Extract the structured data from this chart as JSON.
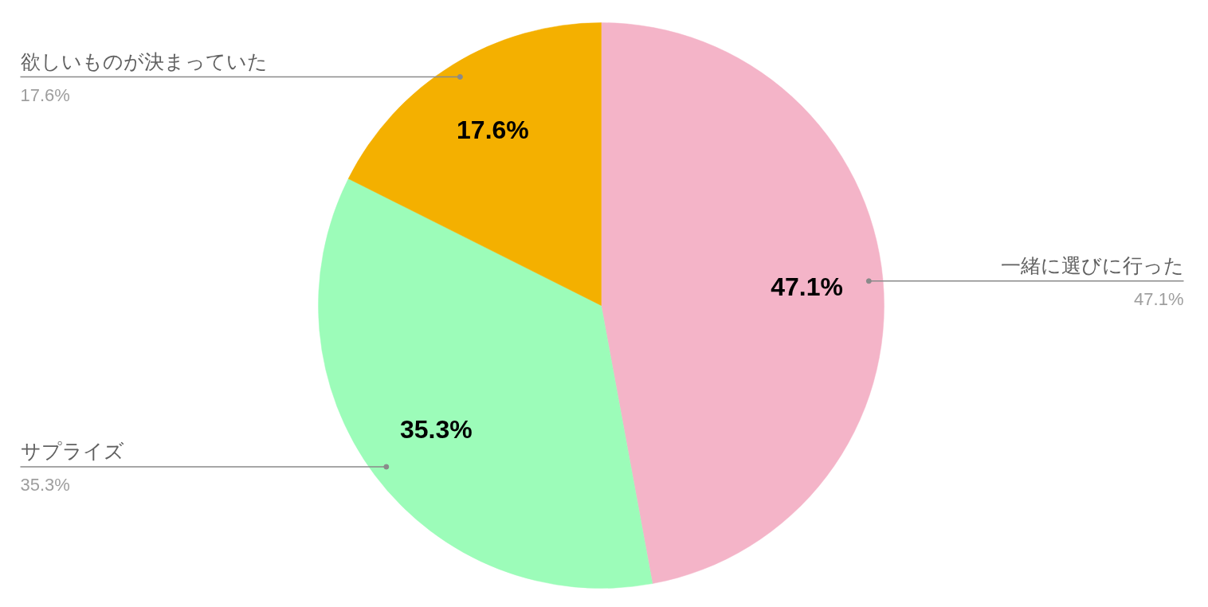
{
  "chart_data": {
    "type": "pie",
    "categories": [
      "一緒に選びに行った",
      "サプライズ",
      "欲しいものが決まっていた"
    ],
    "values": [
      47.1,
      35.3,
      17.6
    ],
    "colors": [
      "#f4b4c8",
      "#9cfcb9",
      "#f4b000"
    ],
    "value_labels": [
      "47.1%",
      "35.3%",
      "17.6%"
    ]
  }
}
